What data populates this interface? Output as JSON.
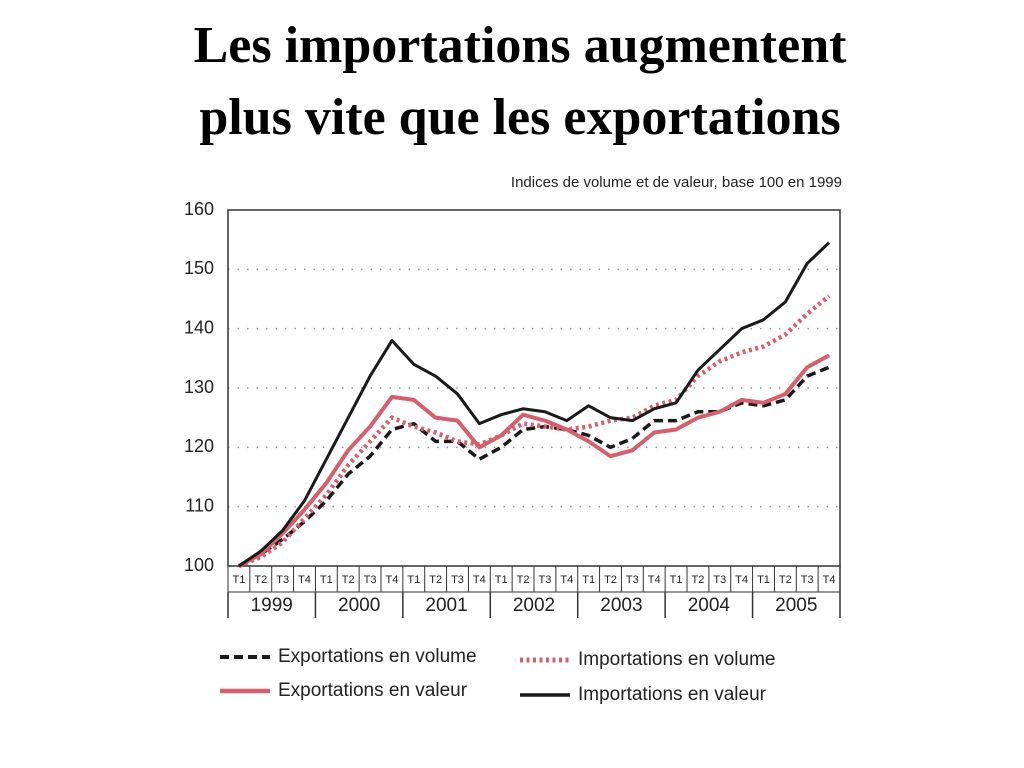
{
  "chart_data": {
    "type": "line",
    "title_lines": [
      "Les importations augmentent",
      "plus vite que les exportations"
    ],
    "subtitle": "Indices de volume et de valeur, base 100 en 1999",
    "categories": [
      "T1",
      "T2",
      "T3",
      "T4",
      "T1",
      "T2",
      "T3",
      "T4",
      "T1",
      "T2",
      "T3",
      "T4",
      "T1",
      "T2",
      "T3",
      "T4",
      "T1",
      "T2",
      "T3",
      "T4",
      "T1",
      "T2",
      "T3",
      "T4",
      "T1",
      "T2",
      "T3",
      "T4"
    ],
    "years": [
      "1999",
      "2000",
      "2001",
      "2002",
      "2003",
      "2004",
      "2005"
    ],
    "ylim": [
      100,
      160
    ],
    "yticks": [
      100,
      110,
      120,
      130,
      140,
      150,
      160
    ],
    "grid": true,
    "series": [
      {
        "name": "Exportations en volume",
        "color": "#1a1a1a",
        "style": "dashed",
        "values": [
          100,
          102,
          104.5,
          107.5,
          111,
          115.5,
          118.5,
          123,
          124,
          121,
          121,
          118,
          120,
          123,
          123.5,
          123,
          122,
          120,
          121.5,
          124.5,
          124.5,
          126,
          126,
          127.5,
          127,
          128,
          132,
          133.5
        ]
      },
      {
        "name": "Importations en volume",
        "color": "#d65f6d",
        "style": "dotted",
        "values": [
          100,
          101.5,
          104,
          108,
          112,
          117,
          121,
          125,
          123.5,
          122.5,
          121,
          120.5,
          122,
          124,
          123.5,
          123,
          123.5,
          124.5,
          125,
          127,
          128,
          132,
          134.5,
          136,
          137,
          139,
          142.5,
          145.5
        ]
      },
      {
        "name": "Exportations en valeur",
        "color": "#d65f6d",
        "style": "solid",
        "values": [
          100,
          102,
          105.5,
          109.5,
          114,
          119.5,
          123.5,
          128.5,
          128,
          125,
          124.5,
          120,
          122,
          125.5,
          124.5,
          123,
          121,
          118.5,
          119.5,
          122.5,
          123,
          125,
          126,
          128,
          127.5,
          129,
          133.5,
          135.5
        ]
      },
      {
        "name": "Importations en valeur",
        "color": "#1a1a1a",
        "style": "solid",
        "values": [
          100,
          102.5,
          106,
          111,
          118,
          125,
          132,
          138,
          134,
          132,
          129,
          124,
          125.5,
          126.5,
          126,
          124.5,
          127,
          125,
          124.5,
          126.5,
          127.5,
          133,
          136.5,
          140,
          141.5,
          144.5,
          151,
          154.5
        ]
      }
    ]
  }
}
